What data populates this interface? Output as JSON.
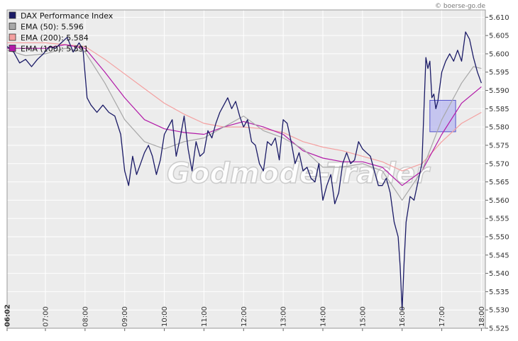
{
  "credit": "© boerse-go.de",
  "watermark": "Godmode-Trader",
  "colors": {
    "plot_bg": "#ececec",
    "grid": "#ffffff",
    "dax": "#1a1a66",
    "ema50": "#a8a8a8",
    "ema200": "#f4a0a0",
    "ema100": "#b21aa8",
    "highlight_fill": "#b8b8f0",
    "highlight_stroke": "#5555cc"
  },
  "chart_data": {
    "type": "line",
    "title": "",
    "xlabel": "",
    "ylabel": "",
    "xlim": [
      6.033,
      18.1
    ],
    "ylim": [
      5.525,
      5.612
    ],
    "grid": true,
    "legend_position": "top-left",
    "x_ticks": [
      {
        "t": 6.033,
        "label": "06:02",
        "bold": true
      },
      {
        "t": 7,
        "label": "07:00"
      },
      {
        "t": 8,
        "label": "08:00"
      },
      {
        "t": 9,
        "label": "09:00"
      },
      {
        "t": 10,
        "label": "10:00"
      },
      {
        "t": 11,
        "label": "11:00"
      },
      {
        "t": 12,
        "label": "12:00"
      },
      {
        "t": 13,
        "label": "13:00"
      },
      {
        "t": 14,
        "label": "14:00"
      },
      {
        "t": 15,
        "label": "15:00"
      },
      {
        "t": 16,
        "label": "16:00"
      },
      {
        "t": 17,
        "label": "17:00"
      },
      {
        "t": 18,
        "label": "18:00"
      }
    ],
    "y_ticks": [
      {
        "v": 5.525,
        "label": "5.525"
      },
      {
        "v": 5.53,
        "label": "5.530"
      },
      {
        "v": 5.535,
        "label": "5.535"
      },
      {
        "v": 5.54,
        "label": "5.540"
      },
      {
        "v": 5.545,
        "label": "5.545"
      },
      {
        "v": 5.55,
        "label": "5.550"
      },
      {
        "v": 5.555,
        "label": "5.555"
      },
      {
        "v": 5.56,
        "label": "5.560"
      },
      {
        "v": 5.565,
        "label": "5.565"
      },
      {
        "v": 5.57,
        "label": "5.570"
      },
      {
        "v": 5.575,
        "label": "5.575"
      },
      {
        "v": 5.58,
        "label": "5.580"
      },
      {
        "v": 5.585,
        "label": "5.585"
      },
      {
        "v": 5.59,
        "label": "5.590"
      },
      {
        "v": 5.595,
        "label": "5.595"
      },
      {
        "v": 5.6,
        "label": "5.600"
      },
      {
        "v": 5.605,
        "label": "5.605"
      },
      {
        "v": 5.61,
        "label": "5.610"
      }
    ],
    "highlight_box": {
      "x": [
        16.7,
        17.35
      ],
      "y": [
        5.5787,
        5.5873
      ]
    },
    "series": [
      {
        "key": "dax",
        "name": "DAX Performance Index",
        "points": [
          [
            6.033,
            5.602
          ],
          [
            6.2,
            5.6005
          ],
          [
            6.35,
            5.5975
          ],
          [
            6.5,
            5.5985
          ],
          [
            6.65,
            5.5965
          ],
          [
            6.8,
            5.5985
          ],
          [
            6.95,
            5.6
          ],
          [
            7.1,
            5.602
          ],
          [
            7.25,
            5.6015
          ],
          [
            7.4,
            5.603
          ],
          [
            7.55,
            5.6045
          ],
          [
            7.7,
            5.6005
          ],
          [
            7.85,
            5.603
          ],
          [
            7.95,
            5.601
          ],
          [
            8.05,
            5.588
          ],
          [
            8.15,
            5.586
          ],
          [
            8.3,
            5.584
          ],
          [
            8.45,
            5.586
          ],
          [
            8.6,
            5.584
          ],
          [
            8.75,
            5.583
          ],
          [
            8.9,
            5.578
          ],
          [
            9.0,
            5.568
          ],
          [
            9.1,
            5.564
          ],
          [
            9.2,
            5.572
          ],
          [
            9.3,
            5.567
          ],
          [
            9.4,
            5.57
          ],
          [
            9.5,
            5.573
          ],
          [
            9.6,
            5.575
          ],
          [
            9.7,
            5.572
          ],
          [
            9.8,
            5.567
          ],
          [
            9.9,
            5.571
          ],
          [
            10.0,
            5.578
          ],
          [
            10.1,
            5.58
          ],
          [
            10.2,
            5.582
          ],
          [
            10.3,
            5.572
          ],
          [
            10.4,
            5.577
          ],
          [
            10.5,
            5.583
          ],
          [
            10.6,
            5.574
          ],
          [
            10.7,
            5.568
          ],
          [
            10.8,
            5.576
          ],
          [
            10.9,
            5.572
          ],
          [
            11.0,
            5.573
          ],
          [
            11.1,
            5.579
          ],
          [
            11.2,
            5.577
          ],
          [
            11.3,
            5.581
          ],
          [
            11.4,
            5.584
          ],
          [
            11.5,
            5.586
          ],
          [
            11.6,
            5.588
          ],
          [
            11.7,
            5.585
          ],
          [
            11.8,
            5.587
          ],
          [
            11.9,
            5.583
          ],
          [
            12.0,
            5.58
          ],
          [
            12.1,
            5.582
          ],
          [
            12.2,
            5.576
          ],
          [
            12.3,
            5.575
          ],
          [
            12.4,
            5.57
          ],
          [
            12.5,
            5.568
          ],
          [
            12.6,
            5.576
          ],
          [
            12.7,
            5.575
          ],
          [
            12.8,
            5.577
          ],
          [
            12.9,
            5.571
          ],
          [
            13.0,
            5.582
          ],
          [
            13.1,
            5.581
          ],
          [
            13.2,
            5.576
          ],
          [
            13.3,
            5.57
          ],
          [
            13.4,
            5.573
          ],
          [
            13.5,
            5.568
          ],
          [
            13.6,
            5.569
          ],
          [
            13.7,
            5.566
          ],
          [
            13.8,
            5.565
          ],
          [
            13.9,
            5.57
          ],
          [
            14.0,
            5.56
          ],
          [
            14.1,
            5.564
          ],
          [
            14.2,
            5.567
          ],
          [
            14.3,
            5.559
          ],
          [
            14.4,
            5.562
          ],
          [
            14.5,
            5.57
          ],
          [
            14.6,
            5.573
          ],
          [
            14.7,
            5.57
          ],
          [
            14.8,
            5.571
          ],
          [
            14.9,
            5.576
          ],
          [
            15.0,
            5.574
          ],
          [
            15.1,
            5.573
          ],
          [
            15.2,
            5.572
          ],
          [
            15.3,
            5.568
          ],
          [
            15.4,
            5.564
          ],
          [
            15.5,
            5.564
          ],
          [
            15.6,
            5.566
          ],
          [
            15.7,
            5.562
          ],
          [
            15.8,
            5.554
          ],
          [
            15.9,
            5.55
          ],
          [
            15.95,
            5.542
          ],
          [
            16.0,
            5.53
          ],
          [
            16.05,
            5.543
          ],
          [
            16.1,
            5.554
          ],
          [
            16.2,
            5.561
          ],
          [
            16.3,
            5.56
          ],
          [
            16.4,
            5.565
          ],
          [
            16.5,
            5.57
          ],
          [
            16.6,
            5.599
          ],
          [
            16.65,
            5.596
          ],
          [
            16.7,
            5.598
          ],
          [
            16.75,
            5.588
          ],
          [
            16.8,
            5.589
          ],
          [
            16.85,
            5.585
          ],
          [
            16.9,
            5.587
          ],
          [
            17.0,
            5.595
          ],
          [
            17.1,
            5.598
          ],
          [
            17.2,
            5.6
          ],
          [
            17.3,
            5.598
          ],
          [
            17.4,
            5.601
          ],
          [
            17.5,
            5.598
          ],
          [
            17.6,
            5.606
          ],
          [
            17.7,
            5.604
          ],
          [
            17.8,
            5.599
          ],
          [
            17.9,
            5.595
          ],
          [
            18.0,
            5.592
          ]
        ]
      },
      {
        "key": "ema50",
        "name": "EMA (50): 5.596",
        "points": [
          [
            6.033,
            5.601
          ],
          [
            6.5,
            5.5995
          ],
          [
            7.0,
            5.6
          ],
          [
            7.5,
            5.6015
          ],
          [
            8.0,
            5.6005
          ],
          [
            8.5,
            5.592
          ],
          [
            9.0,
            5.582
          ],
          [
            9.5,
            5.576
          ],
          [
            10.0,
            5.574
          ],
          [
            10.5,
            5.576
          ],
          [
            11.0,
            5.577
          ],
          [
            11.5,
            5.58
          ],
          [
            12.0,
            5.583
          ],
          [
            12.5,
            5.579
          ],
          [
            13.0,
            5.577
          ],
          [
            13.5,
            5.574
          ],
          [
            14.0,
            5.569
          ],
          [
            14.5,
            5.569
          ],
          [
            15.0,
            5.57
          ],
          [
            15.5,
            5.568
          ],
          [
            16.0,
            5.56
          ],
          [
            16.5,
            5.568
          ],
          [
            17.0,
            5.582
          ],
          [
            17.5,
            5.592
          ],
          [
            17.8,
            5.5965
          ],
          [
            18.0,
            5.596
          ]
        ]
      },
      {
        "key": "ema200",
        "name": "EMA (200): 5.584",
        "points": [
          [
            6.033,
            5.603
          ],
          [
            7.0,
            5.603
          ],
          [
            8.0,
            5.602
          ],
          [
            8.5,
            5.5985
          ],
          [
            9.0,
            5.5945
          ],
          [
            9.5,
            5.5905
          ],
          [
            10.0,
            5.5865
          ],
          [
            10.5,
            5.5835
          ],
          [
            11.0,
            5.581
          ],
          [
            11.5,
            5.58
          ],
          [
            12.0,
            5.58
          ],
          [
            12.5,
            5.5795
          ],
          [
            13.0,
            5.5785
          ],
          [
            13.5,
            5.576
          ],
          [
            14.0,
            5.5745
          ],
          [
            14.5,
            5.5735
          ],
          [
            15.0,
            5.572
          ],
          [
            15.5,
            5.5705
          ],
          [
            16.0,
            5.568
          ],
          [
            16.5,
            5.57
          ],
          [
            17.0,
            5.576
          ],
          [
            17.5,
            5.581
          ],
          [
            18.0,
            5.584
          ]
        ]
      },
      {
        "key": "ema100",
        "name": "EMA (100): 5.591",
        "points": [
          [
            6.033,
            5.6015
          ],
          [
            7.0,
            5.6015
          ],
          [
            7.5,
            5.6025
          ],
          [
            8.0,
            5.6015
          ],
          [
            8.5,
            5.595
          ],
          [
            9.0,
            5.588
          ],
          [
            9.5,
            5.582
          ],
          [
            10.0,
            5.5795
          ],
          [
            10.5,
            5.5785
          ],
          [
            11.0,
            5.578
          ],
          [
            11.5,
            5.58
          ],
          [
            12.0,
            5.5815
          ],
          [
            12.5,
            5.58
          ],
          [
            13.0,
            5.578
          ],
          [
            13.5,
            5.5735
          ],
          [
            14.0,
            5.5715
          ],
          [
            14.5,
            5.5705
          ],
          [
            15.0,
            5.5705
          ],
          [
            15.5,
            5.569
          ],
          [
            16.0,
            5.564
          ],
          [
            16.5,
            5.568
          ],
          [
            17.0,
            5.578
          ],
          [
            17.5,
            5.5865
          ],
          [
            18.0,
            5.591
          ]
        ]
      }
    ]
  }
}
